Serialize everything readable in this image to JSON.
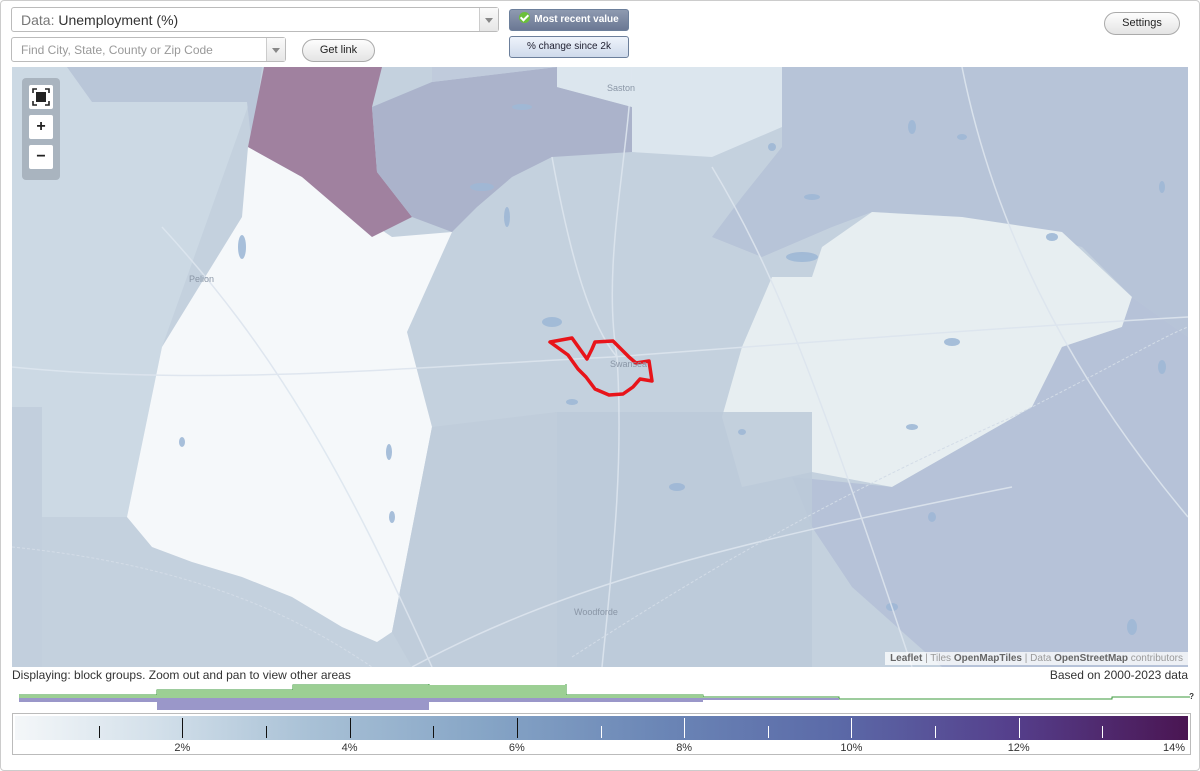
{
  "header": {
    "data_prefix": "Data:",
    "data_value": "Unemployment (%)",
    "search_placeholder": "Find City, State, County or Zip Code",
    "get_link_label": "Get link",
    "most_recent_label": "Most recent value",
    "change_label": "% change since 2k",
    "settings_label": "Settings"
  },
  "map": {
    "places": [
      "Saston",
      "Pelion",
      "Swansea",
      "Woodforde"
    ],
    "zoom_fit_icon": "fullscreen-icon",
    "zoom_in_label": "+",
    "zoom_out_label": "−",
    "attribution": {
      "leaflet": "Leaflet",
      "tiles_prefix": "Tiles",
      "tiles": "OpenMapTiles",
      "data_prefix": "Data",
      "data": "OpenStreetMap",
      "suffix": "contributors"
    },
    "highlight_color": "#e8141a"
  },
  "footer": {
    "displaying": "Displaying: block groups. Zoom out and pan to view other areas",
    "based_on": "Based on 2000-2023 data",
    "histogram_help": "?"
  },
  "legend": {
    "labels": [
      "2%",
      "4%",
      "6%",
      "8%",
      "10%",
      "12%",
      "14%"
    ],
    "range": [
      0,
      14
    ],
    "colors": {
      "low": "#f4f7f9",
      "mid": "#6b86b6",
      "high": "#4a1552"
    }
  }
}
